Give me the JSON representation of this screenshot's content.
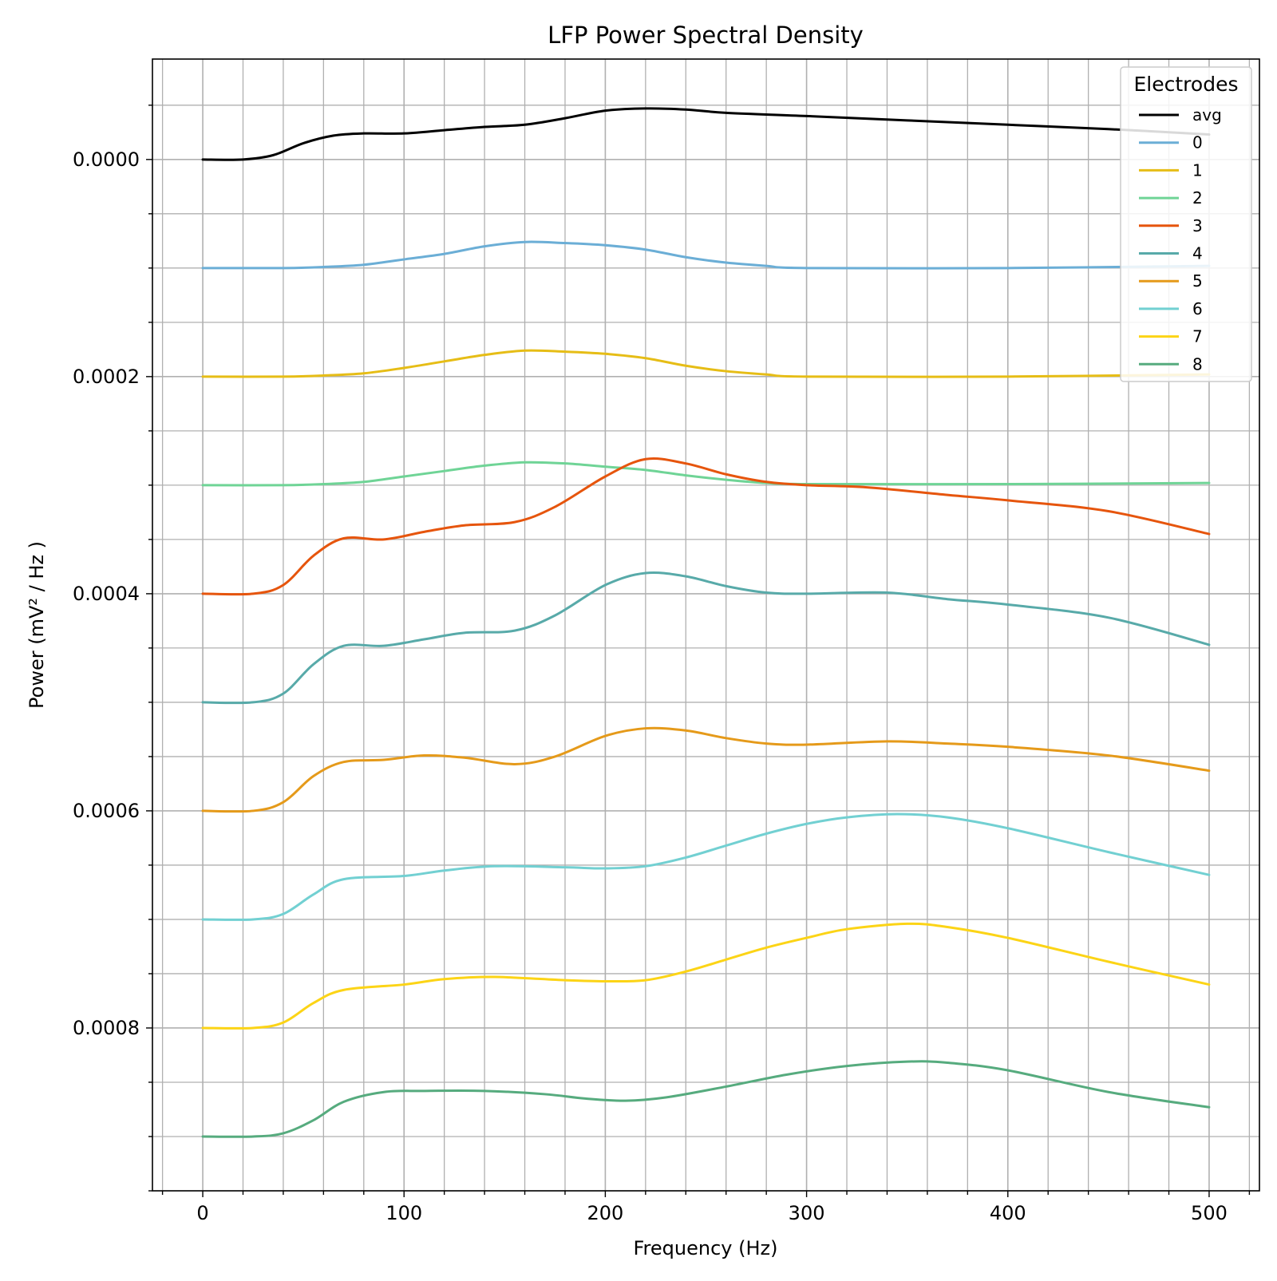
{
  "chart_data": {
    "type": "line",
    "title": "LFP Power Spectral Density",
    "xlabel": "Frequency (Hz)",
    "ylabel": "Power (mV² / Hz )",
    "xlim": [
      -25,
      525
    ],
    "ylim": [
      0.00095,
      -9.25e-05
    ],
    "y_inverted": true,
    "x_ticks": [
      0,
      100,
      200,
      300,
      400,
      500
    ],
    "x_tick_labels": [
      "0",
      "100",
      "200",
      "300",
      "400",
      "500"
    ],
    "x_minor_step": 20,
    "y_ticks": [
      0.0,
      0.0002,
      0.0004,
      0.0006,
      0.0008
    ],
    "y_tick_labels": [
      "0.0000",
      "0.0002",
      "0.0004",
      "0.0006",
      "0.0008"
    ],
    "y_minor_step": 5e-05,
    "grid": "major and minor",
    "legend": {
      "title": "Electrodes",
      "placement": "top-right"
    },
    "series": [
      {
        "name": "avg",
        "color": "#000000",
        "points": [
          [
            0,
            0.0
          ],
          [
            20,
            0.0
          ],
          [
            35,
            -4e-06
          ],
          [
            50,
            -1.5e-05
          ],
          [
            65,
            -2.2e-05
          ],
          [
            80,
            -2.4e-05
          ],
          [
            100,
            -2.4e-05
          ],
          [
            120,
            -2.7e-05
          ],
          [
            140,
            -3e-05
          ],
          [
            160,
            -3.2e-05
          ],
          [
            180,
            -3.8e-05
          ],
          [
            200,
            -4.5e-05
          ],
          [
            220,
            -4.7e-05
          ],
          [
            240,
            -4.6e-05
          ],
          [
            260,
            -4.3e-05
          ],
          [
            300,
            -4e-05
          ],
          [
            350,
            -3.6e-05
          ],
          [
            400,
            -3.2e-05
          ],
          [
            450,
            -2.8e-05
          ],
          [
            500,
            -2.3e-05
          ]
        ]
      },
      {
        "name": "0",
        "color": "#6baed6",
        "points": [
          [
            0,
            0.0001
          ],
          [
            40,
            0.0001
          ],
          [
            60,
            9.9e-05
          ],
          [
            80,
            9.7e-05
          ],
          [
            100,
            9.2e-05
          ],
          [
            120,
            8.7e-05
          ],
          [
            140,
            8e-05
          ],
          [
            160,
            7.6e-05
          ],
          [
            180,
            7.7e-05
          ],
          [
            200,
            7.9e-05
          ],
          [
            220,
            8.3e-05
          ],
          [
            240,
            9e-05
          ],
          [
            260,
            9.5e-05
          ],
          [
            280,
            9.8e-05
          ],
          [
            300,
            0.0001
          ],
          [
            400,
            0.0001
          ],
          [
            500,
            9.8e-05
          ]
        ]
      },
      {
        "name": "1",
        "color": "#e6bd16",
        "points": [
          [
            0,
            0.0002
          ],
          [
            40,
            0.0002
          ],
          [
            60,
            0.000199
          ],
          [
            80,
            0.000197
          ],
          [
            100,
            0.000192
          ],
          [
            120,
            0.000186
          ],
          [
            140,
            0.00018
          ],
          [
            160,
            0.000176
          ],
          [
            180,
            0.000177
          ],
          [
            200,
            0.000179
          ],
          [
            220,
            0.000183
          ],
          [
            240,
            0.00019
          ],
          [
            260,
            0.000195
          ],
          [
            280,
            0.000198
          ],
          [
            300,
            0.0002
          ],
          [
            400,
            0.0002
          ],
          [
            500,
            0.000198
          ]
        ]
      },
      {
        "name": "2",
        "color": "#6fd496",
        "points": [
          [
            0,
            0.0003
          ],
          [
            40,
            0.0003
          ],
          [
            60,
            0.000299
          ],
          [
            80,
            0.000297
          ],
          [
            100,
            0.000292
          ],
          [
            120,
            0.000287
          ],
          [
            140,
            0.000282
          ],
          [
            160,
            0.000279
          ],
          [
            180,
            0.00028
          ],
          [
            200,
            0.000283
          ],
          [
            220,
            0.000286
          ],
          [
            240,
            0.000291
          ],
          [
            260,
            0.000295
          ],
          [
            280,
            0.000298
          ],
          [
            300,
            0.000299
          ],
          [
            400,
            0.000299
          ],
          [
            500,
            0.000298
          ]
        ]
      },
      {
        "name": "3",
        "color": "#e6550d",
        "points": [
          [
            0,
            0.0004
          ],
          [
            25,
            0.0004
          ],
          [
            40,
            0.000392
          ],
          [
            55,
            0.000365
          ],
          [
            70,
            0.000349
          ],
          [
            90,
            0.00035
          ],
          [
            110,
            0.000343
          ],
          [
            130,
            0.000337
          ],
          [
            155,
            0.000334
          ],
          [
            175,
            0.00032
          ],
          [
            200,
            0.000292
          ],
          [
            220,
            0.000276
          ],
          [
            240,
            0.00028
          ],
          [
            260,
            0.00029
          ],
          [
            280,
            0.000297
          ],
          [
            300,
            0.0003
          ],
          [
            330,
            0.000302
          ],
          [
            370,
            0.000309
          ],
          [
            400,
            0.000314
          ],
          [
            450,
            0.000324
          ],
          [
            500,
            0.000345
          ]
        ]
      },
      {
        "name": "4",
        "color": "#58aaa9",
        "points": [
          [
            0,
            0.0005
          ],
          [
            25,
            0.0005
          ],
          [
            40,
            0.000492
          ],
          [
            55,
            0.000465
          ],
          [
            70,
            0.000448
          ],
          [
            90,
            0.000448
          ],
          [
            110,
            0.000442
          ],
          [
            130,
            0.000436
          ],
          [
            155,
            0.000434
          ],
          [
            175,
            0.00042
          ],
          [
            200,
            0.000392
          ],
          [
            220,
            0.000381
          ],
          [
            240,
            0.000384
          ],
          [
            260,
            0.000393
          ],
          [
            280,
            0.000399
          ],
          [
            300,
            0.0004
          ],
          [
            340,
            0.000399
          ],
          [
            370,
            0.000405
          ],
          [
            400,
            0.00041
          ],
          [
            450,
            0.000422
          ],
          [
            500,
            0.000447
          ]
        ]
      },
      {
        "name": "5",
        "color": "#e59a1a",
        "points": [
          [
            0,
            0.0006
          ],
          [
            25,
            0.0006
          ],
          [
            40,
            0.000592
          ],
          [
            55,
            0.000568
          ],
          [
            70,
            0.000555
          ],
          [
            90,
            0.000553
          ],
          [
            110,
            0.000549
          ],
          [
            130,
            0.000551
          ],
          [
            155,
            0.000557
          ],
          [
            175,
            0.00055
          ],
          [
            200,
            0.000531
          ],
          [
            220,
            0.000524
          ],
          [
            240,
            0.000526
          ],
          [
            260,
            0.000533
          ],
          [
            280,
            0.000538
          ],
          [
            300,
            0.000539
          ],
          [
            340,
            0.000536
          ],
          [
            370,
            0.000538
          ],
          [
            400,
            0.000541
          ],
          [
            450,
            0.000549
          ],
          [
            500,
            0.000563
          ]
        ]
      },
      {
        "name": "6",
        "color": "#72d0d2",
        "points": [
          [
            0,
            0.0007
          ],
          [
            25,
            0.0007
          ],
          [
            40,
            0.000695
          ],
          [
            55,
            0.000677
          ],
          [
            70,
            0.000663
          ],
          [
            100,
            0.00066
          ],
          [
            120,
            0.000655
          ],
          [
            145,
            0.000651
          ],
          [
            180,
            0.000652
          ],
          [
            200,
            0.000653
          ],
          [
            220,
            0.000651
          ],
          [
            240,
            0.000643
          ],
          [
            260,
            0.000632
          ],
          [
            280,
            0.000621
          ],
          [
            300,
            0.000612
          ],
          [
            320,
            0.000606
          ],
          [
            345,
            0.000603
          ],
          [
            370,
            0.000606
          ],
          [
            400,
            0.000616
          ],
          [
            450,
            0.000638
          ],
          [
            500,
            0.000659
          ]
        ]
      },
      {
        "name": "7",
        "color": "#fcd416",
        "points": [
          [
            0,
            0.0008
          ],
          [
            25,
            0.0008
          ],
          [
            40,
            0.000795
          ],
          [
            55,
            0.000777
          ],
          [
            70,
            0.000765
          ],
          [
            100,
            0.00076
          ],
          [
            120,
            0.000755
          ],
          [
            145,
            0.000753
          ],
          [
            180,
            0.000756
          ],
          [
            200,
            0.000757
          ],
          [
            220,
            0.000756
          ],
          [
            240,
            0.000748
          ],
          [
            260,
            0.000737
          ],
          [
            280,
            0.000726
          ],
          [
            300,
            0.000717
          ],
          [
            320,
            0.000709
          ],
          [
            350,
            0.000704
          ],
          [
            370,
            0.000707
          ],
          [
            400,
            0.000717
          ],
          [
            450,
            0.000739
          ],
          [
            500,
            0.00076
          ]
        ]
      },
      {
        "name": "8",
        "color": "#56ab7e",
        "points": [
          [
            0,
            0.0009
          ],
          [
            25,
            0.0009
          ],
          [
            40,
            0.000897
          ],
          [
            55,
            0.000885
          ],
          [
            70,
            0.000868
          ],
          [
            90,
            0.000859
          ],
          [
            110,
            0.000858
          ],
          [
            140,
            0.000858
          ],
          [
            170,
            0.000861
          ],
          [
            190,
            0.000865
          ],
          [
            210,
            0.000867
          ],
          [
            230,
            0.000864
          ],
          [
            260,
            0.000854
          ],
          [
            290,
            0.000843
          ],
          [
            320,
            0.000835
          ],
          [
            350,
            0.000831
          ],
          [
            370,
            0.000832
          ],
          [
            400,
            0.000839
          ],
          [
            450,
            0.000859
          ],
          [
            500,
            0.000873
          ]
        ]
      }
    ]
  }
}
